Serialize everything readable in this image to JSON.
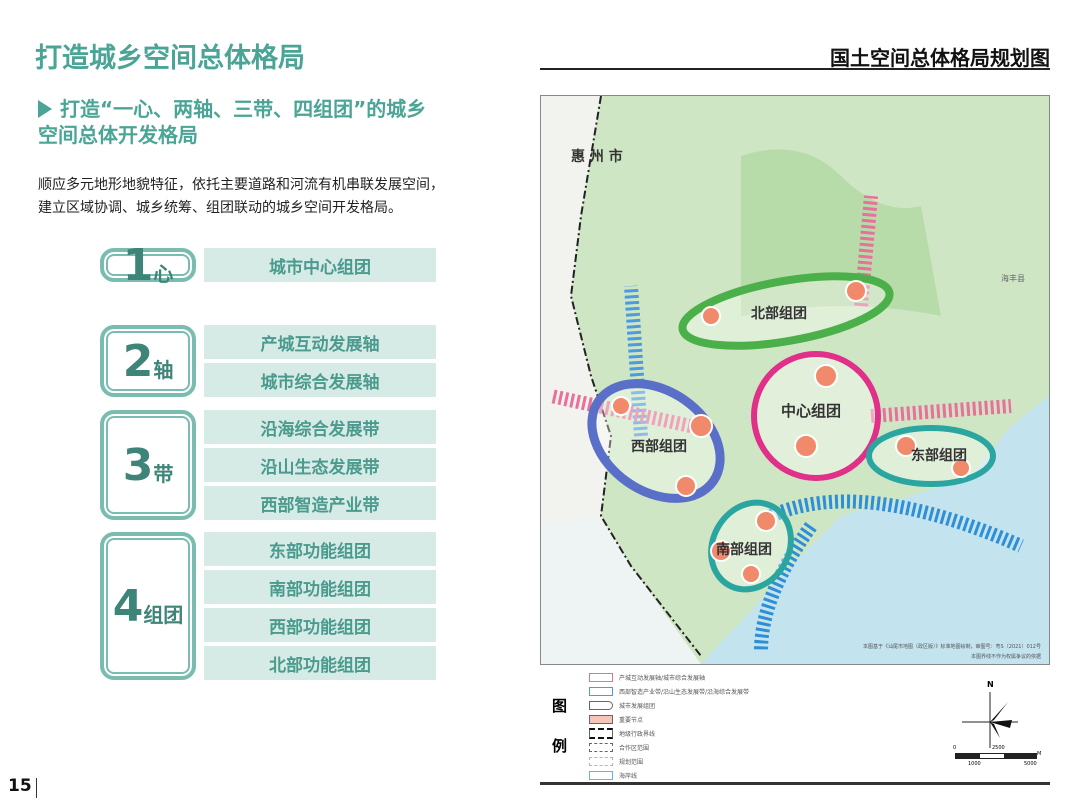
{
  "page": {
    "title": "打造城乡空间总体格局",
    "map_title": "国土空间总体格局规划图",
    "page_number": "15"
  },
  "intro": {
    "subtitle_line1": "打造“一心、两轴、三带、四组团”的城乡",
    "subtitle_line2": "空间总体开发格局",
    "desc_line1": "顺应多元地形地貌特征，依托主要道路和河流有机串联发展空间，",
    "desc_line2": "建立区域协调、城乡统筹、组团联动的城乡空间开发格局。"
  },
  "groups": [
    {
      "num": "1",
      "unit": "心",
      "items": [
        "城市中心组团"
      ]
    },
    {
      "num": "2",
      "unit": "轴",
      "items": [
        "产城互动发展轴",
        "城市综合发展轴"
      ]
    },
    {
      "num": "3",
      "unit": "带",
      "items": [
        "沿海综合发展带",
        "沿山生态发展带",
        "西部智造产业带"
      ]
    },
    {
      "num": "4",
      "unit": "组团",
      "items": [
        "东部功能组团",
        "南部功能组团",
        "西部功能组团",
        "北部功能组团"
      ]
    }
  ],
  "map": {
    "labels": {
      "huizhou": "惠 州 市",
      "haifeng": "海丰县",
      "north": "北部组团",
      "center": "中心组团",
      "west": "西部组团",
      "east": "东部组团",
      "south": "南部组团"
    },
    "note1": "本图基于《汕尾市地图（政区版）》标准地图绘制，审图号：粤S（2021）012号",
    "note2": "本图界线不作为权属争议的依据",
    "colors": {
      "land": "#cfe6c4",
      "sea": "#c3e3ee",
      "north": "#4cb04a",
      "center": "#e0308a",
      "west": "#5a6fc8",
      "east": "#2aa5a0",
      "south": "#2aa5a0",
      "axis": "#e8709a",
      "belt": "#2f8fd6"
    }
  },
  "legend": {
    "title1": "图",
    "title2": "例",
    "items": [
      "产城互动发展轴/城市综合发展轴",
      "西部智造产业带/沿山生态发展带/沿海综合发展带",
      "城市发展组团",
      "重要节点",
      "地级行政界线",
      "合作区范围",
      "规划范围",
      "海岸线"
    ],
    "north": "N",
    "scale": {
      "s0": "0",
      "s1": "1000",
      "s2": "2500",
      "s3": "5000",
      "unit": "M"
    }
  }
}
